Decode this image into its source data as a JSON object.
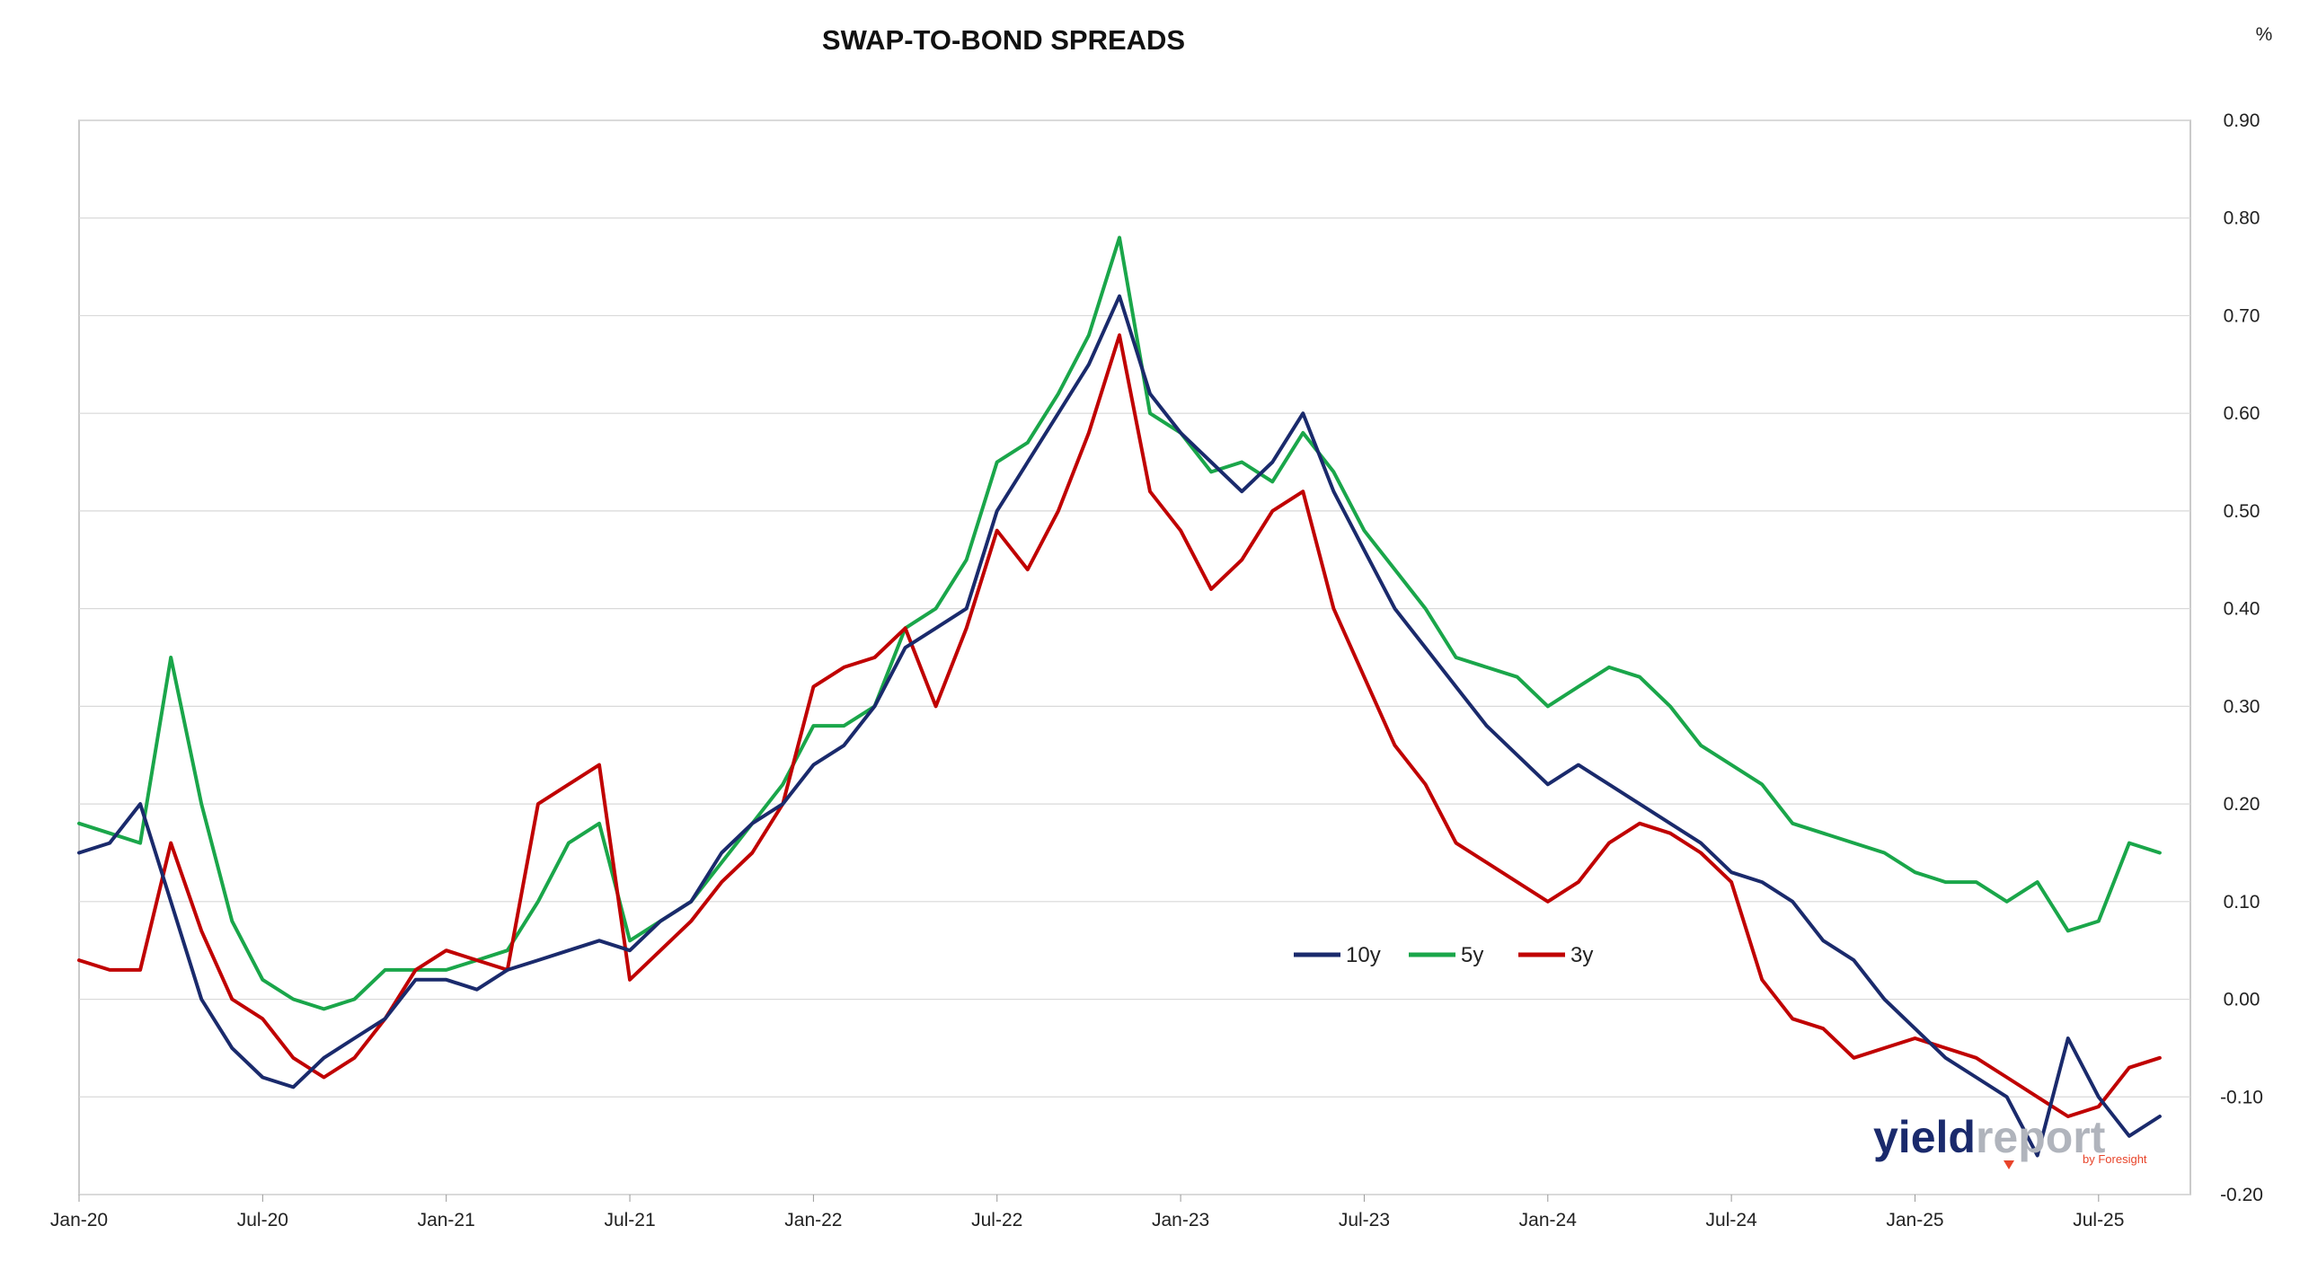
{
  "chart_data": {
    "type": "line",
    "title": "SWAP-TO-BOND SPREADS",
    "y_unit": "%",
    "ylim": [
      -0.2,
      0.9
    ],
    "y_ticks": [
      "0.90",
      "0.80",
      "0.70",
      "0.60",
      "0.50",
      "0.40",
      "0.30",
      "0.20",
      "0.10",
      "0.00",
      "-0.10",
      "-0.20"
    ],
    "y_axis_position": "right",
    "x_ticks": [
      "Jan-20",
      "Jul-20",
      "Jan-21",
      "Jul-21",
      "Jan-22",
      "Jul-22",
      "Jan-23",
      "Jul-23",
      "Jan-24",
      "Jul-24",
      "Jan-25",
      "Jul-25"
    ],
    "x_dates": [
      "2020-01",
      "2020-07",
      "2021-01",
      "2021-07",
      "2022-01",
      "2022-07",
      "2023-01",
      "2023-07",
      "2024-01",
      "2024-07",
      "2025-01",
      "2025-07"
    ],
    "grid": "horizontal",
    "legend_position": "center-right",
    "series": [
      {
        "name": "10y",
        "color": "#1a2a6c",
        "x": [
          "2020-01",
          "2020-02",
          "2020-03",
          "2020-04",
          "2020-05",
          "2020-06",
          "2020-07",
          "2020-08",
          "2020-09",
          "2020-10",
          "2020-11",
          "2020-12",
          "2021-01",
          "2021-02",
          "2021-03",
          "2021-04",
          "2021-05",
          "2021-06",
          "2021-07",
          "2021-08",
          "2021-09",
          "2021-10",
          "2021-11",
          "2021-12",
          "2022-01",
          "2022-02",
          "2022-03",
          "2022-04",
          "2022-05",
          "2022-06",
          "2022-07",
          "2022-08",
          "2022-09",
          "2022-10",
          "2022-11",
          "2022-12",
          "2023-01",
          "2023-02",
          "2023-03",
          "2023-04",
          "2023-05",
          "2023-06",
          "2023-07",
          "2023-08",
          "2023-09",
          "2023-10",
          "2023-11",
          "2023-12",
          "2024-01",
          "2024-02",
          "2024-03",
          "2024-04",
          "2024-05",
          "2024-06",
          "2024-07",
          "2024-08",
          "2024-09",
          "2024-10",
          "2024-11",
          "2024-12",
          "2025-01",
          "2025-02",
          "2025-03",
          "2025-04",
          "2025-05",
          "2025-06",
          "2025-07",
          "2025-08",
          "2025-09"
        ],
        "values": [
          0.15,
          0.16,
          0.2,
          0.1,
          0.0,
          -0.05,
          -0.08,
          -0.09,
          -0.06,
          -0.04,
          -0.02,
          0.02,
          0.02,
          0.01,
          0.03,
          0.04,
          0.05,
          0.06,
          0.05,
          0.08,
          0.1,
          0.15,
          0.18,
          0.2,
          0.24,
          0.26,
          0.3,
          0.36,
          0.38,
          0.4,
          0.5,
          0.55,
          0.6,
          0.65,
          0.72,
          0.62,
          0.58,
          0.55,
          0.52,
          0.55,
          0.6,
          0.52,
          0.46,
          0.4,
          0.36,
          0.32,
          0.28,
          0.25,
          0.22,
          0.24,
          0.22,
          0.2,
          0.18,
          0.16,
          0.13,
          0.12,
          0.1,
          0.06,
          0.04,
          0.0,
          -0.03,
          -0.06,
          -0.08,
          -0.1,
          -0.16,
          -0.04,
          -0.1,
          -0.14,
          -0.12
        ]
      },
      {
        "name": "5y",
        "color": "#1aa64a",
        "x": [
          "2020-01",
          "2020-02",
          "2020-03",
          "2020-04",
          "2020-05",
          "2020-06",
          "2020-07",
          "2020-08",
          "2020-09",
          "2020-10",
          "2020-11",
          "2020-12",
          "2021-01",
          "2021-02",
          "2021-03",
          "2021-04",
          "2021-05",
          "2021-06",
          "2021-07",
          "2021-08",
          "2021-09",
          "2021-10",
          "2021-11",
          "2021-12",
          "2022-01",
          "2022-02",
          "2022-03",
          "2022-04",
          "2022-05",
          "2022-06",
          "2022-07",
          "2022-08",
          "2022-09",
          "2022-10",
          "2022-11",
          "2022-12",
          "2023-01",
          "2023-02",
          "2023-03",
          "2023-04",
          "2023-05",
          "2023-06",
          "2023-07",
          "2023-08",
          "2023-09",
          "2023-10",
          "2023-11",
          "2023-12",
          "2024-01",
          "2024-02",
          "2024-03",
          "2024-04",
          "2024-05",
          "2024-06",
          "2024-07",
          "2024-08",
          "2024-09",
          "2024-10",
          "2024-11",
          "2024-12",
          "2025-01",
          "2025-02",
          "2025-03",
          "2025-04",
          "2025-05",
          "2025-06",
          "2025-07",
          "2025-08",
          "2025-09"
        ],
        "values": [
          0.18,
          0.17,
          0.16,
          0.35,
          0.2,
          0.08,
          0.02,
          0.0,
          -0.01,
          0.0,
          0.03,
          0.03,
          0.03,
          0.04,
          0.05,
          0.1,
          0.16,
          0.18,
          0.06,
          0.08,
          0.1,
          0.14,
          0.18,
          0.22,
          0.28,
          0.28,
          0.3,
          0.38,
          0.4,
          0.45,
          0.55,
          0.57,
          0.62,
          0.68,
          0.78,
          0.6,
          0.58,
          0.54,
          0.55,
          0.53,
          0.58,
          0.54,
          0.48,
          0.44,
          0.4,
          0.35,
          0.34,
          0.33,
          0.3,
          0.32,
          0.34,
          0.33,
          0.3,
          0.26,
          0.24,
          0.22,
          0.18,
          0.17,
          0.16,
          0.15,
          0.13,
          0.12,
          0.12,
          0.1,
          0.12,
          0.07,
          0.08,
          0.16,
          0.15
        ]
      },
      {
        "name": "3y",
        "color": "#c00000",
        "x": [
          "2020-01",
          "2020-02",
          "2020-03",
          "2020-04",
          "2020-05",
          "2020-06",
          "2020-07",
          "2020-08",
          "2020-09",
          "2020-10",
          "2020-11",
          "2020-12",
          "2021-01",
          "2021-02",
          "2021-03",
          "2021-04",
          "2021-05",
          "2021-06",
          "2021-07",
          "2021-08",
          "2021-09",
          "2021-10",
          "2021-11",
          "2021-12",
          "2022-01",
          "2022-02",
          "2022-03",
          "2022-04",
          "2022-05",
          "2022-06",
          "2022-07",
          "2022-08",
          "2022-09",
          "2022-10",
          "2022-11",
          "2022-12",
          "2023-01",
          "2023-02",
          "2023-03",
          "2023-04",
          "2023-05",
          "2023-06",
          "2023-07",
          "2023-08",
          "2023-09",
          "2023-10",
          "2023-11",
          "2023-12",
          "2024-01",
          "2024-02",
          "2024-03",
          "2024-04",
          "2024-05",
          "2024-06",
          "2024-07",
          "2024-08",
          "2024-09",
          "2024-10",
          "2024-11",
          "2024-12",
          "2025-01",
          "2025-02",
          "2025-03",
          "2025-04",
          "2025-05",
          "2025-06",
          "2025-07",
          "2025-08",
          "2025-09"
        ],
        "values": [
          0.04,
          0.03,
          0.03,
          0.16,
          0.07,
          0.0,
          -0.02,
          -0.06,
          -0.08,
          -0.06,
          -0.02,
          0.03,
          0.05,
          0.04,
          0.03,
          0.2,
          0.22,
          0.24,
          0.02,
          0.05,
          0.08,
          0.12,
          0.15,
          0.2,
          0.32,
          0.34,
          0.35,
          0.38,
          0.3,
          0.38,
          0.48,
          0.44,
          0.5,
          0.58,
          0.68,
          0.52,
          0.48,
          0.42,
          0.45,
          0.5,
          0.52,
          0.4,
          0.33,
          0.26,
          0.22,
          0.16,
          0.14,
          0.12,
          0.1,
          0.12,
          0.16,
          0.18,
          0.17,
          0.15,
          0.12,
          0.02,
          -0.02,
          -0.03,
          -0.06,
          -0.05,
          -0.04,
          -0.05,
          -0.06,
          -0.08,
          -0.1,
          -0.12,
          -0.11,
          -0.07,
          -0.06
        ]
      }
    ]
  },
  "logo": {
    "part1": "yield",
    "part2": "report",
    "sub": "by Foresight"
  }
}
